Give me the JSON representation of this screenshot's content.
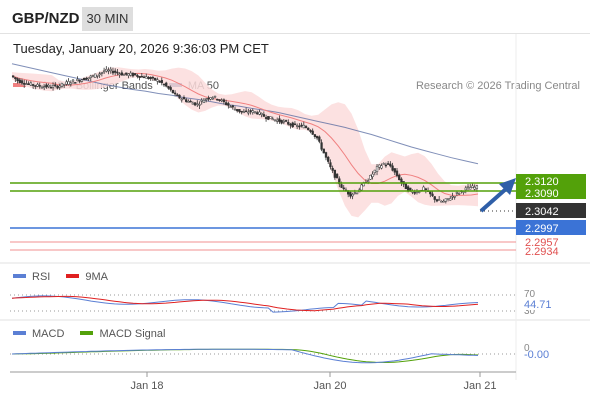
{
  "header": {
    "symbol": "GBP/NZD",
    "timeframe": "30 MIN"
  },
  "datetime": "Tuesday, January 20, 2026 9:36:03 PM CET",
  "credit": "Research © 2026 Trading Central",
  "colors": {
    "ma20": "#f08080",
    "ma50": "#4a5f9a",
    "bollinger": "#fbdcdc",
    "resistance": "#53a10a",
    "support_blue": "#3b73d6",
    "support_red": "#e05050",
    "price_box": "#333333",
    "arrow": "#2f5fa8",
    "rsi": "#5b7fd4",
    "rsi_ma": "#e02020",
    "macd": "#5b7fd4",
    "macd_signal": "#53a10a"
  },
  "legends": {
    "main": [
      {
        "label": "MA 20 + Bollinger Bands",
        "color": "#f08080"
      },
      {
        "label": "MA 50",
        "color": "#2d4f8f"
      }
    ],
    "rsi": [
      {
        "label": "RSI",
        "color": "#5b7fd4"
      },
      {
        "label": "9MA",
        "color": "#e02020"
      }
    ],
    "macd": [
      {
        "label": "MACD",
        "color": "#5b7fd4"
      },
      {
        "label": "MACD Signal",
        "color": "#53a10a"
      }
    ]
  },
  "chart_data": {
    "type": "candlestick",
    "ylim": [
      2.292,
      2.329
    ],
    "x_ticks": [
      "Jan 18",
      "Jan 20",
      "Jan 21"
    ],
    "levels": [
      {
        "value": "2.3120",
        "kind": "resistance"
      },
      {
        "value": "2.3090",
        "kind": "resistance"
      },
      {
        "value": "2.3042",
        "kind": "current"
      },
      {
        "value": "2.2997",
        "kind": "support"
      },
      {
        "value": "2.2957",
        "kind": "support-weak"
      },
      {
        "value": "2.2934",
        "kind": "support-weak"
      }
    ],
    "price_path": [
      2.323,
      2.3222,
      2.3218,
      2.3215,
      2.3213,
      2.3212,
      2.3212,
      2.3212,
      2.3216,
      2.322,
      2.3222,
      2.3225,
      2.3228,
      2.3232,
      2.3238,
      2.3238,
      2.3235,
      2.3232,
      2.3232,
      2.323,
      2.3228,
      2.3225,
      2.3222,
      2.3215,
      2.3205,
      2.3195,
      2.319,
      2.3185,
      2.3182,
      2.319,
      2.3195,
      2.3192,
      2.3185,
      2.3178,
      2.3172,
      2.3168,
      2.317,
      2.3168,
      2.3162,
      2.3158,
      2.3155,
      2.3152,
      2.3148,
      2.3145,
      2.3145,
      2.3138,
      2.3125,
      2.31,
      2.3075,
      2.3055,
      2.3038,
      2.303,
      2.3035,
      2.3048,
      2.306,
      2.3075,
      2.3082,
      2.3078,
      2.3062,
      2.3045,
      2.3035,
      2.3035,
      2.304,
      2.303,
      2.302,
      2.3018,
      2.3025,
      2.3032,
      2.3038,
      2.3042,
      2.3042
    ],
    "ma50_path": [
      2.325,
      2.3245,
      2.324,
      2.3235,
      2.323,
      2.3225,
      2.322,
      2.3215,
      2.3211,
      2.3207,
      2.3204,
      2.32,
      2.3197,
      2.3193,
      2.319,
      2.3186,
      2.3182,
      2.3179,
      2.3175,
      2.3172,
      2.3168,
      2.3163,
      2.3158,
      2.3153,
      2.3148,
      2.3143,
      2.3137,
      2.3131,
      2.3124,
      2.3117,
      2.311,
      2.3104,
      2.3098,
      2.3092,
      2.3087,
      2.3082
    ],
    "rsi": {
      "value": "44.71",
      "levels": [
        "70",
        "30"
      ]
    },
    "macd": {
      "value": "-0.00",
      "levels": [
        "0"
      ]
    }
  }
}
